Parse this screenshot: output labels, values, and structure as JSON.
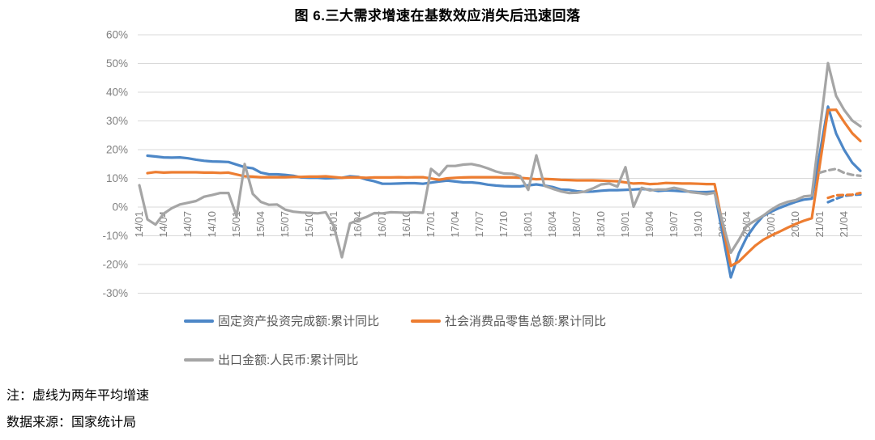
{
  "title": "图 6.三大需求增速在基数效应消失后迅速回落",
  "notes": {
    "dashed_line_note": "注：虚线为两年平均增速",
    "source_note": "数据来源：国家统计局"
  },
  "chart_data": {
    "type": "line",
    "title": "图 6.三大需求增速在基数效应消失后迅速回落",
    "x_start": "14/01",
    "x_end": "21/06",
    "x_frequency": "monthly",
    "n_points": 90,
    "x_tick_labels": [
      "14/01",
      "14/04",
      "14/07",
      "14/10",
      "15/01",
      "15/04",
      "15/07",
      "15/10",
      "16/01",
      "16/04",
      "16/07",
      "16/10",
      "17/01",
      "17/04",
      "17/07",
      "17/10",
      "18/01",
      "18/04",
      "18/07",
      "18/10",
      "19/01",
      "19/04",
      "19/07",
      "19/10",
      "20/01",
      "20/04",
      "20/07",
      "20/10",
      "21/01",
      "21/04"
    ],
    "y_ticks": [
      60,
      50,
      40,
      30,
      20,
      10,
      0,
      -10,
      -20,
      -30
    ],
    "y_tick_suffix": "%",
    "ylim": [
      -30,
      60
    ],
    "grid": true,
    "legend_position": "bottom",
    "grid_color": "#d9d9d9",
    "axis_label_color": "#808080",
    "series": [
      {
        "id": "fai-cumulative-yoy",
        "name": "固定资产投资完成额:累计同比",
        "color": "#4d87c7",
        "style": "solid",
        "in_legend": true,
        "start": 0,
        "values": [
          null,
          17.9,
          17.6,
          17.3,
          17.2,
          17.3,
          17.0,
          16.5,
          16.1,
          15.9,
          15.8,
          15.7,
          null,
          13.9,
          13.5,
          12.0,
          11.4,
          11.4,
          11.2,
          10.9,
          10.3,
          10.2,
          10.2,
          10.0,
          null,
          10.2,
          10.7,
          10.5,
          9.6,
          9.0,
          8.1,
          8.1,
          8.2,
          8.3,
          8.3,
          8.1,
          null,
          8.9,
          9.2,
          8.9,
          8.6,
          8.6,
          8.3,
          7.8,
          7.5,
          7.3,
          7.2,
          7.2,
          null,
          7.9,
          7.5,
          7.0,
          6.1,
          6.0,
          5.5,
          5.3,
          5.4,
          5.7,
          5.9,
          5.9,
          null,
          6.1,
          6.3,
          6.1,
          5.6,
          5.8,
          5.7,
          5.5,
          5.4,
          5.2,
          5.2,
          5.4,
          null,
          -24.5,
          -16.1,
          -10.3,
          -6.3,
          -3.1,
          -1.6,
          -0.3,
          0.8,
          1.8,
          2.6,
          2.9,
          null,
          35.0,
          25.6,
          19.9,
          15.4,
          12.6
        ]
      },
      {
        "id": "retail-cumulative-yoy",
        "name": "社会消费品零售总额:累计同比",
        "color": "#ED7D31",
        "style": "solid",
        "in_legend": true,
        "start": 0,
        "values": [
          null,
          11.8,
          12.2,
          12.0,
          12.1,
          12.1,
          12.1,
          12.1,
          12.0,
          12.0,
          11.9,
          12.0,
          null,
          10.7,
          10.6,
          10.4,
          10.4,
          10.4,
          10.4,
          10.5,
          10.5,
          10.6,
          10.6,
          10.7,
          null,
          10.2,
          10.3,
          10.3,
          10.2,
          10.3,
          10.3,
          10.3,
          10.4,
          10.3,
          10.4,
          10.4,
          null,
          9.5,
          10.0,
          10.2,
          10.3,
          10.4,
          10.4,
          10.4,
          10.4,
          10.3,
          10.3,
          10.2,
          null,
          9.7,
          9.8,
          9.7,
          9.5,
          9.4,
          9.3,
          9.3,
          9.3,
          9.2,
          9.1,
          9.0,
          null,
          8.2,
          8.3,
          8.0,
          8.1,
          8.4,
          8.3,
          8.2,
          8.2,
          8.1,
          8.0,
          8.0,
          null,
          -20.5,
          -19.0,
          -16.2,
          -13.5,
          -11.4,
          -9.9,
          -8.6,
          -7.2,
          -5.9,
          -4.8,
          -3.9,
          null,
          33.8,
          33.9,
          29.6,
          25.7,
          23.0
        ]
      },
      {
        "id": "exports-rmb-cumulative-yoy",
        "name": "出口金额:人民币:累计同比",
        "color": "#A5A5A5",
        "style": "solid",
        "in_legend": true,
        "start": 0,
        "values": [
          7.6,
          -4.3,
          -6.1,
          -2.3,
          -0.4,
          0.9,
          1.5,
          2.1,
          3.6,
          4.2,
          4.9,
          4.9,
          -3.2,
          15.0,
          4.6,
          1.8,
          0.8,
          0.9,
          -0.9,
          -1.6,
          -1.9,
          -2.0,
          -2.2,
          -1.8,
          -6.6,
          -17.5,
          -5.7,
          -4.5,
          -3.5,
          -2.1,
          -2.2,
          -1.8,
          -1.9,
          -2.0,
          -1.8,
          -2.0,
          13.3,
          11.0,
          14.3,
          14.3,
          14.8,
          15.0,
          14.4,
          13.5,
          12.4,
          11.7,
          11.6,
          10.8,
          6.0,
          18.0,
          7.4,
          6.4,
          5.5,
          4.9,
          5.0,
          5.4,
          6.5,
          7.9,
          8.2,
          7.1,
          13.9,
          0.1,
          6.7,
          5.8,
          6.1,
          6.1,
          6.7,
          6.1,
          5.2,
          4.9,
          4.5,
          5.0,
          null,
          -15.9,
          -11.4,
          -6.4,
          -4.7,
          -3.0,
          -0.9,
          0.8,
          1.8,
          2.4,
          3.7,
          4.0,
          null,
          50.1,
          38.7,
          33.8,
          30.1,
          28.1
        ]
      },
      {
        "id": "fai-two-year-average",
        "color": "#4d87c7",
        "style": "dashed",
        "in_legend": false,
        "start": 85,
        "values": [
          1.7,
          2.9,
          3.9,
          4.2,
          4.4
        ]
      },
      {
        "id": "retail-two-year-average",
        "color": "#ED7D31",
        "style": "dashed",
        "in_legend": false,
        "start": 85,
        "values": [
          3.2,
          4.1,
          4.2,
          4.3,
          4.9
        ]
      },
      {
        "id": "exports-two-year-average",
        "color": "#A5A5A5",
        "style": "dashed",
        "in_legend": false,
        "start": 84,
        "values": [
          12.0,
          12.8,
          13.3,
          11.9,
          11.2,
          10.9
        ]
      }
    ]
  }
}
